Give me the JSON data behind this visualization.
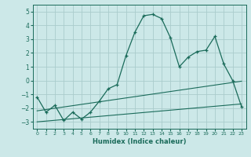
{
  "xlabel": "Humidex (Indice chaleur)",
  "bg_color": "#cce8e8",
  "grid_color": "#aacccc",
  "line_color": "#1a6b5a",
  "xlim": [
    -0.5,
    23.5
  ],
  "ylim": [
    -3.5,
    5.5
  ],
  "yticks": [
    -3,
    -2,
    -1,
    0,
    1,
    2,
    3,
    4,
    5
  ],
  "xticks": [
    0,
    1,
    2,
    3,
    4,
    5,
    6,
    7,
    8,
    9,
    10,
    11,
    12,
    13,
    14,
    15,
    16,
    17,
    18,
    19,
    20,
    21,
    22,
    23
  ],
  "line1_x": [
    0,
    1,
    2,
    3,
    4,
    5,
    6,
    7,
    8,
    9,
    10,
    11,
    12,
    13,
    14,
    15,
    16,
    17,
    18,
    19,
    20,
    21,
    22,
    23
  ],
  "line1_y": [
    -1.2,
    -2.3,
    -1.8,
    -2.9,
    -2.3,
    -2.8,
    -2.3,
    -1.5,
    -0.6,
    -0.3,
    1.8,
    3.5,
    4.7,
    4.8,
    4.5,
    3.1,
    1.0,
    1.7,
    2.1,
    2.2,
    3.2,
    1.2,
    0.0,
    -1.9
  ],
  "line2_x": [
    0,
    23
  ],
  "line2_y": [
    -2.2,
    -0.05
  ],
  "line3_x": [
    0,
    23
  ],
  "line3_y": [
    -3.0,
    -1.7
  ]
}
